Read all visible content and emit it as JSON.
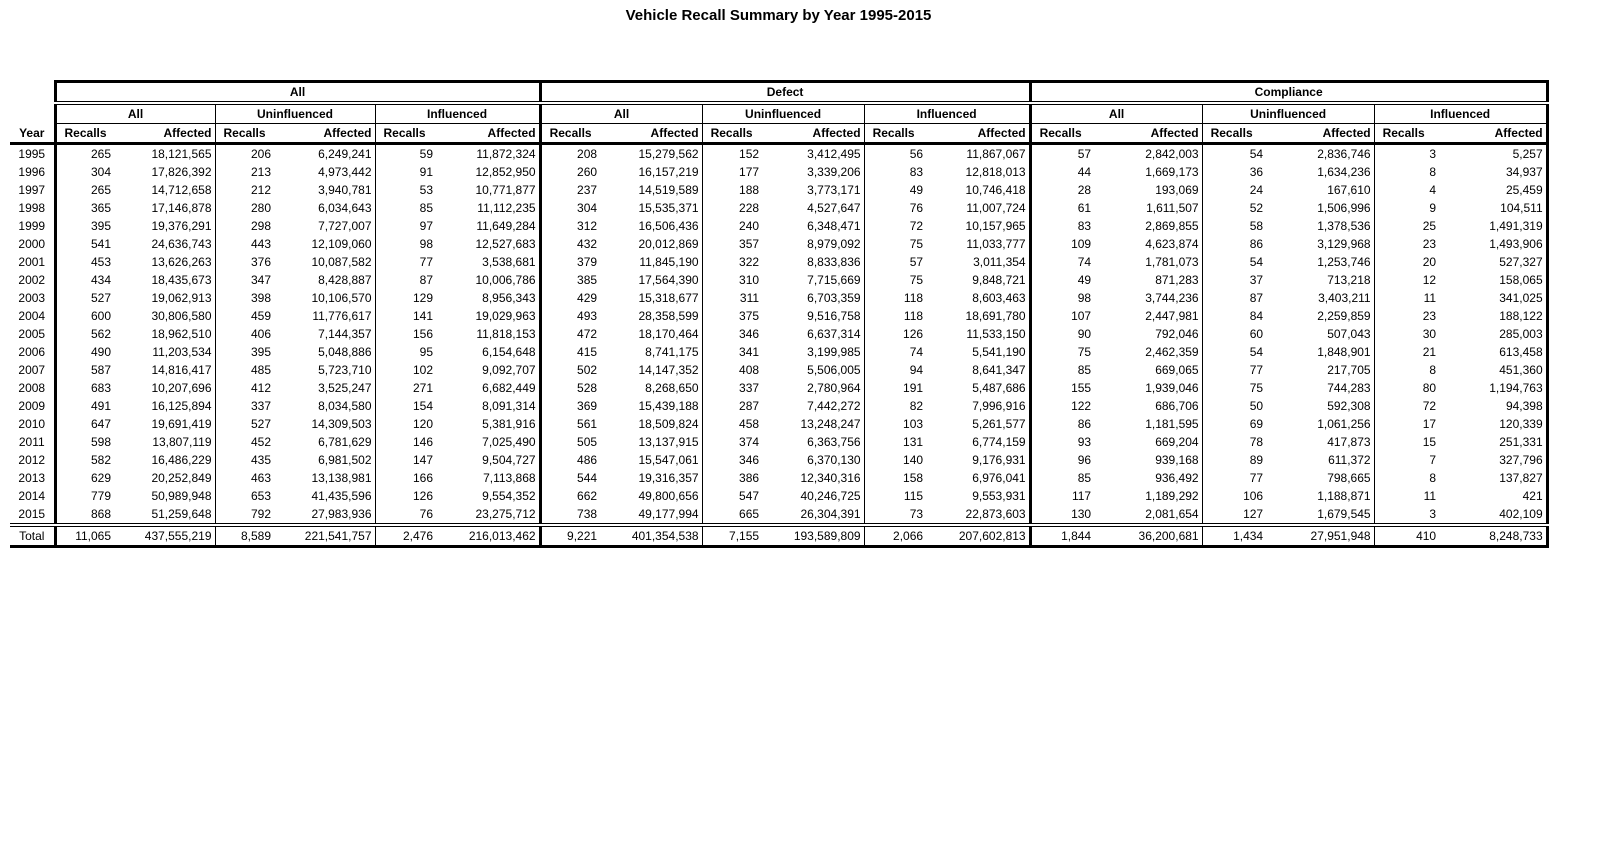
{
  "title": "Vehicle Recall Summary by Year 1995-2015",
  "chart_data": {
    "type": "table",
    "title": "Vehicle Recall Summary by Year 1995-2015",
    "row_label_header": "Year",
    "group_headers": [
      "All",
      "Defect",
      "Compliance"
    ],
    "subgroup_headers": [
      "All",
      "Uninfluenced",
      "Influenced"
    ],
    "measure_headers": [
      "Recalls",
      "Affected"
    ],
    "column_order_note": "values arrays are 18 cells: [All-All R/A, All-Uninfluenced R/A, All-Influenced R/A, Defect-All R/A, Defect-Uninfluenced R/A, Defect-Influenced R/A, Compliance-All R/A, Compliance-Uninfluenced R/A, Compliance-Influenced R/A]",
    "rows": [
      {
        "year": "1995",
        "values": [
          "265",
          "18,121,565",
          "206",
          "6,249,241",
          "59",
          "11,872,324",
          "208",
          "15,279,562",
          "152",
          "3,412,495",
          "56",
          "11,867,067",
          "57",
          "2,842,003",
          "54",
          "2,836,746",
          "3",
          "5,257"
        ]
      },
      {
        "year": "1996",
        "values": [
          "304",
          "17,826,392",
          "213",
          "4,973,442",
          "91",
          "12,852,950",
          "260",
          "16,157,219",
          "177",
          "3,339,206",
          "83",
          "12,818,013",
          "44",
          "1,669,173",
          "36",
          "1,634,236",
          "8",
          "34,937"
        ]
      },
      {
        "year": "1997",
        "values": [
          "265",
          "14,712,658",
          "212",
          "3,940,781",
          "53",
          "10,771,877",
          "237",
          "14,519,589",
          "188",
          "3,773,171",
          "49",
          "10,746,418",
          "28",
          "193,069",
          "24",
          "167,610",
          "4",
          "25,459"
        ]
      },
      {
        "year": "1998",
        "values": [
          "365",
          "17,146,878",
          "280",
          "6,034,643",
          "85",
          "11,112,235",
          "304",
          "15,535,371",
          "228",
          "4,527,647",
          "76",
          "11,007,724",
          "61",
          "1,611,507",
          "52",
          "1,506,996",
          "9",
          "104,511"
        ]
      },
      {
        "year": "1999",
        "values": [
          "395",
          "19,376,291",
          "298",
          "7,727,007",
          "97",
          "11,649,284",
          "312",
          "16,506,436",
          "240",
          "6,348,471",
          "72",
          "10,157,965",
          "83",
          "2,869,855",
          "58",
          "1,378,536",
          "25",
          "1,491,319"
        ]
      },
      {
        "year": "2000",
        "values": [
          "541",
          "24,636,743",
          "443",
          "12,109,060",
          "98",
          "12,527,683",
          "432",
          "20,012,869",
          "357",
          "8,979,092",
          "75",
          "11,033,777",
          "109",
          "4,623,874",
          "86",
          "3,129,968",
          "23",
          "1,493,906"
        ]
      },
      {
        "year": "2001",
        "values": [
          "453",
          "13,626,263",
          "376",
          "10,087,582",
          "77",
          "3,538,681",
          "379",
          "11,845,190",
          "322",
          "8,833,836",
          "57",
          "3,011,354",
          "74",
          "1,781,073",
          "54",
          "1,253,746",
          "20",
          "527,327"
        ]
      },
      {
        "year": "2002",
        "values": [
          "434",
          "18,435,673",
          "347",
          "8,428,887",
          "87",
          "10,006,786",
          "385",
          "17,564,390",
          "310",
          "7,715,669",
          "75",
          "9,848,721",
          "49",
          "871,283",
          "37",
          "713,218",
          "12",
          "158,065"
        ]
      },
      {
        "year": "2003",
        "values": [
          "527",
          "19,062,913",
          "398",
          "10,106,570",
          "129",
          "8,956,343",
          "429",
          "15,318,677",
          "311",
          "6,703,359",
          "118",
          "8,603,463",
          "98",
          "3,744,236",
          "87",
          "3,403,211",
          "11",
          "341,025"
        ]
      },
      {
        "year": "2004",
        "values": [
          "600",
          "30,806,580",
          "459",
          "11,776,617",
          "141",
          "19,029,963",
          "493",
          "28,358,599",
          "375",
          "9,516,758",
          "118",
          "18,691,780",
          "107",
          "2,447,981",
          "84",
          "2,259,859",
          "23",
          "188,122"
        ]
      },
      {
        "year": "2005",
        "values": [
          "562",
          "18,962,510",
          "406",
          "7,144,357",
          "156",
          "11,818,153",
          "472",
          "18,170,464",
          "346",
          "6,637,314",
          "126",
          "11,533,150",
          "90",
          "792,046",
          "60",
          "507,043",
          "30",
          "285,003"
        ]
      },
      {
        "year": "2006",
        "values": [
          "490",
          "11,203,534",
          "395",
          "5,048,886",
          "95",
          "6,154,648",
          "415",
          "8,741,175",
          "341",
          "3,199,985",
          "74",
          "5,541,190",
          "75",
          "2,462,359",
          "54",
          "1,848,901",
          "21",
          "613,458"
        ]
      },
      {
        "year": "2007",
        "values": [
          "587",
          "14,816,417",
          "485",
          "5,723,710",
          "102",
          "9,092,707",
          "502",
          "14,147,352",
          "408",
          "5,506,005",
          "94",
          "8,641,347",
          "85",
          "669,065",
          "77",
          "217,705",
          "8",
          "451,360"
        ]
      },
      {
        "year": "2008",
        "values": [
          "683",
          "10,207,696",
          "412",
          "3,525,247",
          "271",
          "6,682,449",
          "528",
          "8,268,650",
          "337",
          "2,780,964",
          "191",
          "5,487,686",
          "155",
          "1,939,046",
          "75",
          "744,283",
          "80",
          "1,194,763"
        ]
      },
      {
        "year": "2009",
        "values": [
          "491",
          "16,125,894",
          "337",
          "8,034,580",
          "154",
          "8,091,314",
          "369",
          "15,439,188",
          "287",
          "7,442,272",
          "82",
          "7,996,916",
          "122",
          "686,706",
          "50",
          "592,308",
          "72",
          "94,398"
        ]
      },
      {
        "year": "2010",
        "values": [
          "647",
          "19,691,419",
          "527",
          "14,309,503",
          "120",
          "5,381,916",
          "561",
          "18,509,824",
          "458",
          "13,248,247",
          "103",
          "5,261,577",
          "86",
          "1,181,595",
          "69",
          "1,061,256",
          "17",
          "120,339"
        ]
      },
      {
        "year": "2011",
        "values": [
          "598",
          "13,807,119",
          "452",
          "6,781,629",
          "146",
          "7,025,490",
          "505",
          "13,137,915",
          "374",
          "6,363,756",
          "131",
          "6,774,159",
          "93",
          "669,204",
          "78",
          "417,873",
          "15",
          "251,331"
        ]
      },
      {
        "year": "2012",
        "values": [
          "582",
          "16,486,229",
          "435",
          "6,981,502",
          "147",
          "9,504,727",
          "486",
          "15,547,061",
          "346",
          "6,370,130",
          "140",
          "9,176,931",
          "96",
          "939,168",
          "89",
          "611,372",
          "7",
          "327,796"
        ]
      },
      {
        "year": "2013",
        "values": [
          "629",
          "20,252,849",
          "463",
          "13,138,981",
          "166",
          "7,113,868",
          "544",
          "19,316,357",
          "386",
          "12,340,316",
          "158",
          "6,976,041",
          "85",
          "936,492",
          "77",
          "798,665",
          "8",
          "137,827"
        ]
      },
      {
        "year": "2014",
        "values": [
          "779",
          "50,989,948",
          "653",
          "41,435,596",
          "126",
          "9,554,352",
          "662",
          "49,800,656",
          "547",
          "40,246,725",
          "115",
          "9,553,931",
          "117",
          "1,189,292",
          "106",
          "1,188,871",
          "11",
          "421"
        ]
      },
      {
        "year": "2015",
        "values": [
          "868",
          "51,259,648",
          "792",
          "27,983,936",
          "76",
          "23,275,712",
          "738",
          "49,177,994",
          "665",
          "26,304,391",
          "73",
          "22,873,603",
          "130",
          "2,081,654",
          "127",
          "1,679,545",
          "3",
          "402,109"
        ]
      }
    ],
    "total": {
      "year": "Total",
      "values": [
        "11,065",
        "437,555,219",
        "8,589",
        "221,541,757",
        "2,476",
        "216,013,462",
        "9,221",
        "401,354,538",
        "7,155",
        "193,589,809",
        "2,066",
        "207,602,813",
        "1,844",
        "36,200,681",
        "1,434",
        "27,951,948",
        "410",
        "8,248,733"
      ]
    }
  }
}
